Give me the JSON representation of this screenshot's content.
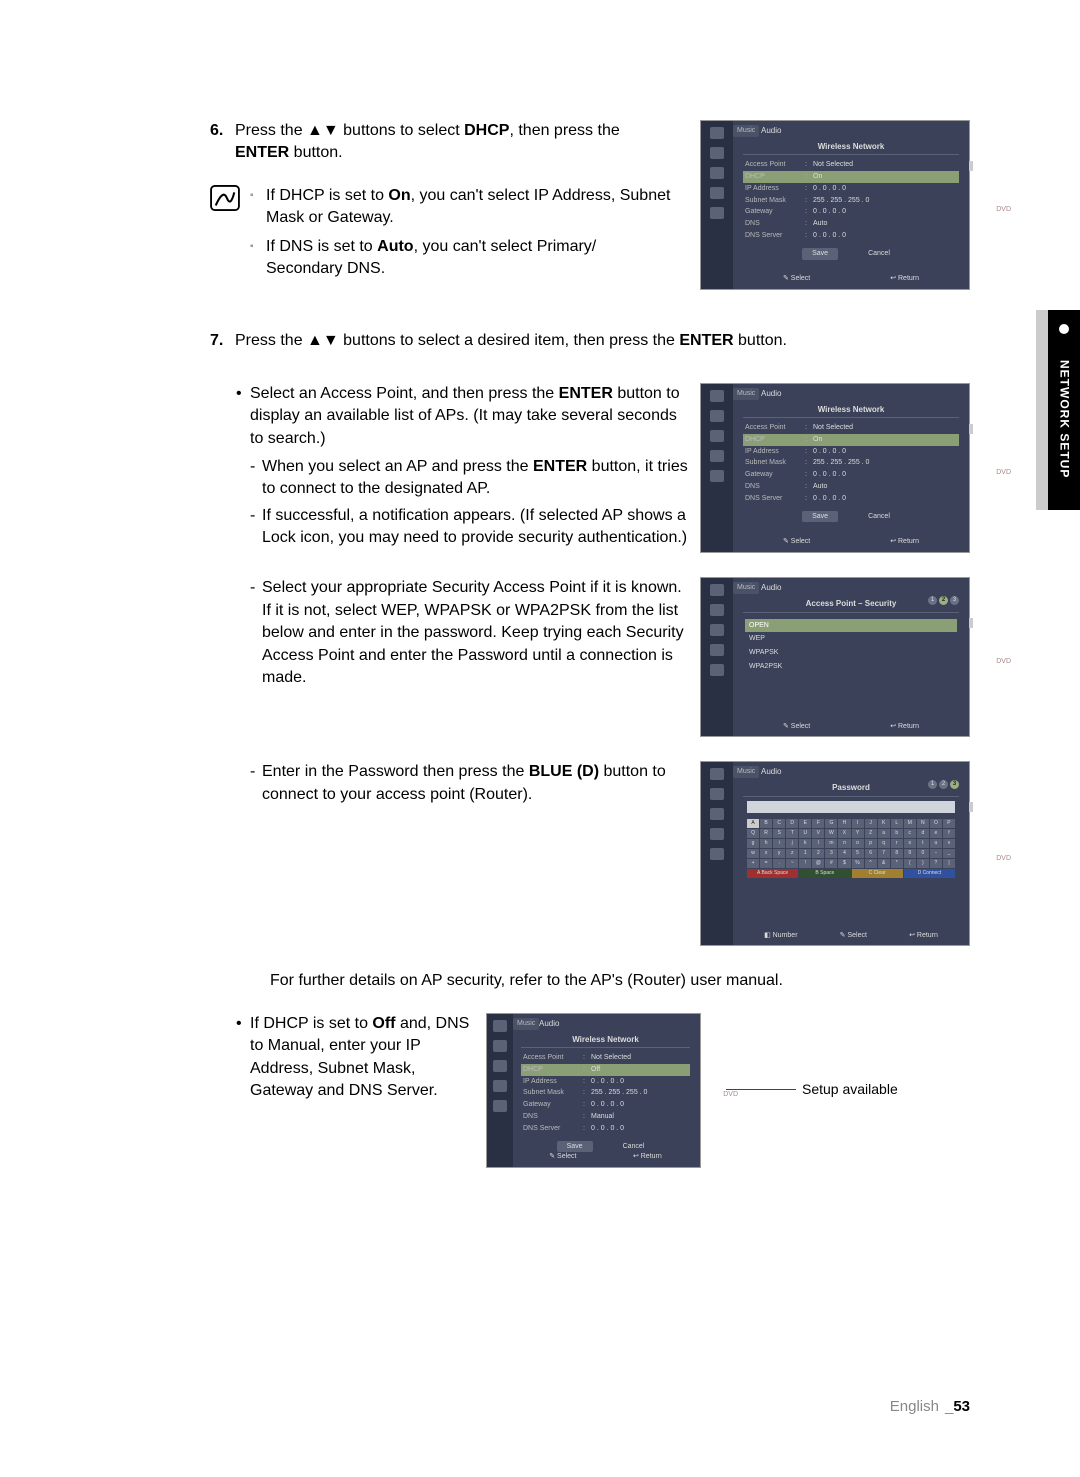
{
  "side_tab": "NETWORK SETUP",
  "step6": {
    "num": "6.",
    "text_a": "Press the ",
    "text_b": " buttons to select ",
    "dhcp": "DHCP",
    "text_c": ", then press the ",
    "enter": "ENTER",
    "text_d": " button."
  },
  "notes": {
    "n1a": "If DHCP is set to ",
    "n1b": "On",
    "n1c": ", you can't select IP Address, Subnet Mask or Gateway.",
    "n2a": "If DNS is set to ",
    "n2b": "Auto",
    "n2c": ", you can't select Primary/ Secondary DNS."
  },
  "step7": {
    "num": "7.",
    "text_a": "Press the ",
    "text_b": " buttons to select a desired item, then press the ",
    "enter": "ENTER",
    "text_c": " button."
  },
  "bullet1": {
    "a": "Select an Access Point, and then press the ",
    "enter": "ENTER",
    "b": " button to display an available list of APs. (It may take several seconds to search.)",
    "d1a": "When you select an AP and press the ",
    "d1b": "ENTER",
    "d1c": " button, it tries to connect to the designated AP.",
    "d2": "If successful, a notification appears. (If selected AP shows a Lock icon, you may need to provide security authentication.)"
  },
  "bullet2": "Select your appropriate Security Access Point if it is known. If it is not, select WEP, WPAPSK or WPA2PSK from the list below and enter in the password. Keep trying each Security Access Point and enter the Password until a connection is made.",
  "bullet3a": "Enter in the Password then press the ",
  "bullet3b": "BLUE (D)",
  "bullet3c": " button to connect to your access point (Router).",
  "further": "For further details on AP security, refer to the AP's (Router) user manual.",
  "bullet4a": "If DHCP is set to ",
  "bullet4b": "Off",
  "bullet4c": " and, DNS to Manual, enter your IP Address, Subnet Mask, Gateway and DNS Server.",
  "callout": "Setup available",
  "pagenum_lang": "English",
  "pagenum": "53",
  "ss": {
    "music": "Music",
    "audio": "Audio",
    "wn": "Wireless Network",
    "rows": [
      {
        "k": "Access Point",
        "v": "Not Selected"
      },
      {
        "k": "DHCP",
        "v": "On",
        "hl": true
      },
      {
        "k": "IP Address",
        "v": "0 . 0 . 0 . 0"
      },
      {
        "k": "Subnet Mask",
        "v": "255 . 255 . 255 . 0"
      },
      {
        "k": "Gateway",
        "v": "0 . 0 . 0 . 0"
      },
      {
        "k": "DNS",
        "v": "Auto"
      },
      {
        "k": "DNS Server",
        "v": "0 . 0 . 0 . 0"
      }
    ],
    "rows_off": [
      {
        "k": "Access Point",
        "v": "Not Selected"
      },
      {
        "k": "DHCP",
        "v": "Off",
        "hl": true
      },
      {
        "k": "IP Address",
        "v": "0 . 0 . 0 . 0"
      },
      {
        "k": "Subnet Mask",
        "v": "255 . 255 . 255 . 0"
      },
      {
        "k": "Gateway",
        "v": "0 . 0 . 0 . 0"
      },
      {
        "k": "DNS",
        "v": "Manual"
      },
      {
        "k": "DNS Server",
        "v": "0 . 0 . 0 . 0"
      }
    ],
    "save": "Save",
    "cancel": "Cancel",
    "select": "Select",
    "return": "Return",
    "dvd": "DVD",
    "sec_title": "Access Point – Security",
    "sec_items": [
      "OPEN",
      "WEP",
      "WPAPSK",
      "WPA2PSK"
    ],
    "password": "Password",
    "number": "Number",
    "backspace": "Back Space",
    "space": "Space",
    "clear": "Clear",
    "connect": "Connect",
    "kb_r1": [
      "A",
      "B",
      "C",
      "D",
      "E",
      "F",
      "G",
      "H",
      "I",
      "J",
      "K",
      "L",
      "M",
      "N",
      "O",
      "P"
    ],
    "kb_r2": [
      "Q",
      "R",
      "S",
      "T",
      "U",
      "V",
      "W",
      "X",
      "Y",
      "Z",
      "a",
      "b",
      "c",
      "d",
      "e",
      "f"
    ],
    "kb_r3": [
      "g",
      "h",
      "i",
      "j",
      "k",
      "l",
      "m",
      "n",
      "o",
      "p",
      "q",
      "r",
      "s",
      "t",
      "u",
      "v"
    ],
    "kb_r4": [
      "w",
      "x",
      "y",
      "z",
      "1",
      "2",
      "3",
      "4",
      "5",
      "6",
      "7",
      "8",
      "9",
      "0",
      "−",
      "_"
    ],
    "kb_r5": [
      "+",
      "=",
      ".",
      "~",
      "!",
      "@",
      "#",
      "$",
      "%",
      "^",
      "&",
      "*",
      "(",
      ")",
      "?",
      "|"
    ]
  }
}
